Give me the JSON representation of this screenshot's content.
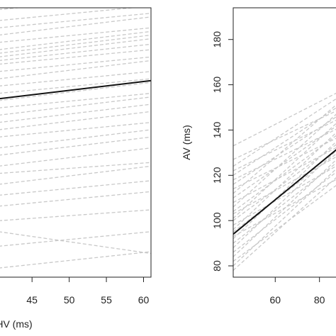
{
  "chart_data": [
    {
      "type": "line",
      "xlabel": "HV (ms)",
      "ylabel": "",
      "xlim": [
        40.5,
        61
      ],
      "ylim": [
        79,
        227
      ],
      "x_ticks": [
        45,
        50,
        55,
        60
      ],
      "y_ticks": [],
      "grid": false,
      "mean_line": {
        "x": [
          40.5,
          61
        ],
        "y": [
          177,
          187
        ]
      },
      "individual_lines": [
        {
          "x": [
            40.5,
            61
          ],
          "y": [
            84,
            93
          ]
        },
        {
          "x": [
            40.5,
            61
          ],
          "y": [
            104,
            92
          ]
        },
        {
          "x": [
            40.5,
            61
          ],
          "y": [
            96,
            104
          ]
        },
        {
          "x": [
            40.5,
            61
          ],
          "y": [
            110,
            116
          ]
        },
        {
          "x": [
            40.5,
            61
          ],
          "y": [
            118,
            126
          ]
        },
        {
          "x": [
            40.5,
            61
          ],
          "y": [
            124,
            132
          ]
        },
        {
          "x": [
            40.5,
            61
          ],
          "y": [
            130,
            140
          ]
        },
        {
          "x": [
            40.5,
            61
          ],
          "y": [
            136,
            142
          ]
        },
        {
          "x": [
            40.5,
            61
          ],
          "y": [
            140,
            150
          ]
        },
        {
          "x": [
            40.5,
            61
          ],
          "y": [
            146,
            156
          ]
        },
        {
          "x": [
            40.5,
            61
          ],
          "y": [
            150,
            160
          ]
        },
        {
          "x": [
            40.5,
            61
          ],
          "y": [
            156,
            164
          ]
        },
        {
          "x": [
            40.5,
            61
          ],
          "y": [
            160,
            170
          ]
        },
        {
          "x": [
            40.5,
            61
          ],
          "y": [
            164,
            174
          ]
        },
        {
          "x": [
            40.5,
            61
          ],
          "y": [
            168,
            178
          ]
        },
        {
          "x": [
            40.5,
            61
          ],
          "y": [
            172,
            180
          ]
        },
        {
          "x": [
            40.5,
            61
          ],
          "y": [
            176,
            186
          ]
        },
        {
          "x": [
            40.5,
            61
          ],
          "y": [
            180,
            188
          ]
        },
        {
          "x": [
            40.5,
            61
          ],
          "y": [
            184,
            192
          ]
        },
        {
          "x": [
            40.5,
            61
          ],
          "y": [
            188,
            198
          ]
        },
        {
          "x": [
            40.5,
            61
          ],
          "y": [
            192,
            200
          ]
        },
        {
          "x": [
            40.5,
            61
          ],
          "y": [
            196,
            204
          ]
        },
        {
          "x": [
            40.5,
            61
          ],
          "y": [
            198,
            207
          ]
        },
        {
          "x": [
            40.5,
            61
          ],
          "y": [
            200,
            210
          ]
        },
        {
          "x": [
            40.5,
            61
          ],
          "y": [
            202,
            212
          ]
        },
        {
          "x": [
            40.5,
            61
          ],
          "y": [
            204,
            214
          ]
        },
        {
          "x": [
            40.5,
            61
          ],
          "y": [
            208,
            216
          ]
        },
        {
          "x": [
            40.5,
            61
          ],
          "y": [
            212,
            222
          ]
        },
        {
          "x": [
            40.5,
            61
          ],
          "y": [
            216,
            224
          ]
        },
        {
          "x": [
            40.5,
            61
          ],
          "y": [
            220,
            228
          ]
        },
        {
          "x": [
            40.5,
            61
          ],
          "y": [
            226,
            234
          ]
        },
        {
          "x": [
            40.5,
            61
          ],
          "y": [
            232,
            238
          ]
        },
        {
          "x": [
            40.5,
            61
          ],
          "y": [
            240,
            246
          ]
        },
        {
          "x": [
            40.5,
            61
          ],
          "y": [
            248,
            256
          ]
        },
        {
          "x": [
            40.5,
            61
          ],
          "y": [
            256,
            262
          ]
        },
        {
          "x": [
            40.5,
            61
          ],
          "y": [
            264,
            270
          ]
        },
        {
          "x": [
            40.5,
            61
          ],
          "y": [
            272,
            280
          ]
        },
        {
          "x": [
            40.5,
            61
          ],
          "y": [
            282,
            286
          ]
        },
        {
          "x": [
            40.5,
            61
          ],
          "y": [
            290,
            294
          ]
        },
        {
          "x": [
            40.5,
            61
          ],
          "y": [
            300,
            304
          ]
        }
      ]
    },
    {
      "type": "line",
      "xlabel": "",
      "ylabel": "AV (ms)",
      "xlim": [
        41,
        91
      ],
      "ylim": [
        75,
        194
      ],
      "x_ticks": [
        60,
        80
      ],
      "y_ticks": [
        80,
        100,
        120,
        140,
        160,
        180
      ],
      "grid": false,
      "mean_line": {
        "x": [
          41,
          91
        ],
        "y": [
          94,
          134
        ]
      },
      "individual_lines": [
        {
          "x": [
            41,
            91
          ],
          "y": [
            78,
            122
          ]
        },
        {
          "x": [
            41,
            91
          ],
          "y": [
            80,
            126
          ]
        },
        {
          "x": [
            41,
            91
          ],
          "y": [
            82,
            118
          ]
        },
        {
          "x": [
            41,
            91
          ],
          "y": [
            84,
            130
          ]
        },
        {
          "x": [
            41,
            91
          ],
          "y": [
            86,
            124
          ]
        },
        {
          "x": [
            41,
            91
          ],
          "y": [
            88,
            134
          ]
        },
        {
          "x": [
            41,
            91
          ],
          "y": [
            90,
            128
          ]
        },
        {
          "x": [
            41,
            91
          ],
          "y": [
            92,
            138
          ]
        },
        {
          "x": [
            41,
            91
          ],
          "y": [
            93,
            120
          ]
        },
        {
          "x": [
            41,
            91
          ],
          "y": [
            95,
            132
          ]
        },
        {
          "x": [
            41,
            91
          ],
          "y": [
            96,
            142
          ]
        },
        {
          "x": [
            41,
            91
          ],
          "y": [
            98,
            126
          ]
        },
        {
          "x": [
            41,
            91
          ],
          "y": [
            100,
            136
          ]
        },
        {
          "x": [
            41,
            91
          ],
          "y": [
            101,
            146
          ]
        },
        {
          "x": [
            41,
            91
          ],
          "y": [
            103,
            130
          ]
        },
        {
          "x": [
            41,
            91
          ],
          "y": [
            104,
            140
          ]
        },
        {
          "x": [
            41,
            91
          ],
          "y": [
            106,
            150
          ]
        },
        {
          "x": [
            41,
            91
          ],
          "y": [
            108,
            134
          ]
        },
        {
          "x": [
            41,
            91
          ],
          "y": [
            110,
            144
          ]
        },
        {
          "x": [
            41,
            91
          ],
          "y": [
            112,
            154
          ]
        },
        {
          "x": [
            41,
            91
          ],
          "y": [
            114,
            138
          ]
        },
        {
          "x": [
            41,
            91
          ],
          "y": [
            116,
            148
          ]
        },
        {
          "x": [
            41,
            91
          ],
          "y": [
            118,
            142
          ]
        },
        {
          "x": [
            41,
            91
          ],
          "y": [
            120,
            152
          ]
        },
        {
          "x": [
            41,
            91
          ],
          "y": [
            122,
            146
          ]
        },
        {
          "x": [
            41,
            91
          ],
          "y": [
            124,
            156
          ]
        },
        {
          "x": [
            41,
            91
          ],
          "y": [
            127,
            150
          ]
        },
        {
          "x": [
            41,
            91
          ],
          "y": [
            133,
            158
          ]
        }
      ]
    }
  ]
}
